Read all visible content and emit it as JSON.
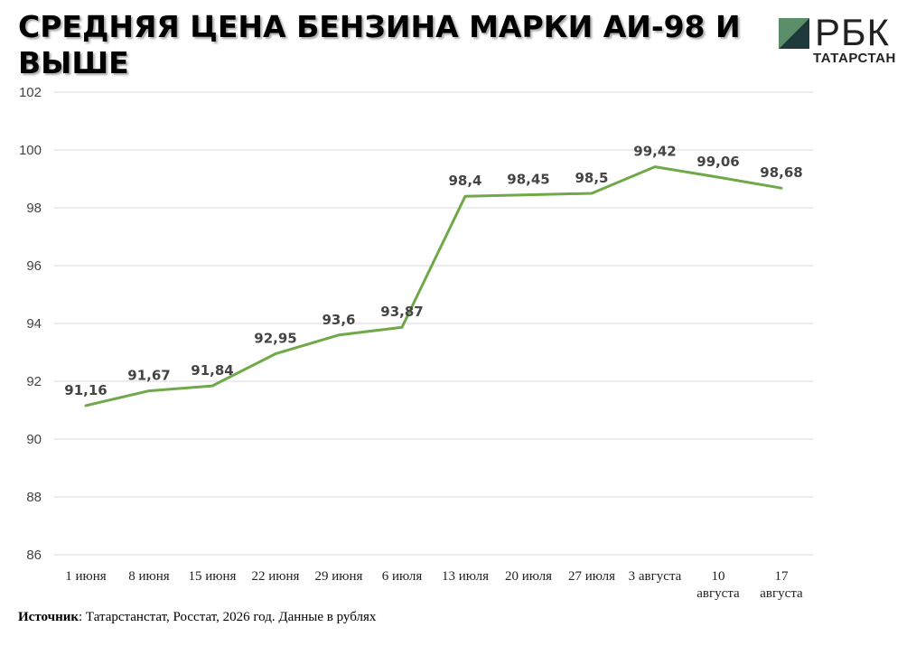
{
  "header": {
    "title": "СРЕДНЯЯ ЦЕНА БЕНЗИНА МАРКИ АИ-98 И ВЫШЕ"
  },
  "logo": {
    "text": "РБК",
    "subtitle": "ТАТАРСТАН"
  },
  "footer": {
    "source_label": "Источник",
    "source_text": ": Татарстанстат, Росстат, 2026 год. Данные в рублях"
  },
  "colors": {
    "line": "#70a84a",
    "grid": "#d9d9d9",
    "logo_dark": "#1f3a3a",
    "logo_green": "#5a8f6a"
  },
  "chart_data": {
    "type": "line",
    "categories": [
      "1 июня",
      "8 июня",
      "15 июня",
      "22 июня",
      "29 июня",
      "6 июля",
      "13 июля",
      "20 июля",
      "27 июля",
      "3 августа",
      "10 августа",
      "17 августа"
    ],
    "series": [
      {
        "values": [
          91.16,
          91.67,
          91.84,
          92.95,
          93.6,
          93.87,
          98.4,
          98.45,
          98.5,
          99.42,
          99.06,
          98.68
        ]
      }
    ],
    "data_labels": [
      "91,16",
      "91,67",
      "91,84",
      "92,95",
      "93,6",
      "93,87",
      "98,4",
      "98,45",
      "98,5",
      "99,42",
      "99,06",
      "98,68"
    ],
    "y_ticks": [
      86,
      88,
      90,
      92,
      94,
      96,
      98,
      100,
      102
    ],
    "ylim": [
      86,
      102
    ],
    "grid": true,
    "legend": "none"
  }
}
